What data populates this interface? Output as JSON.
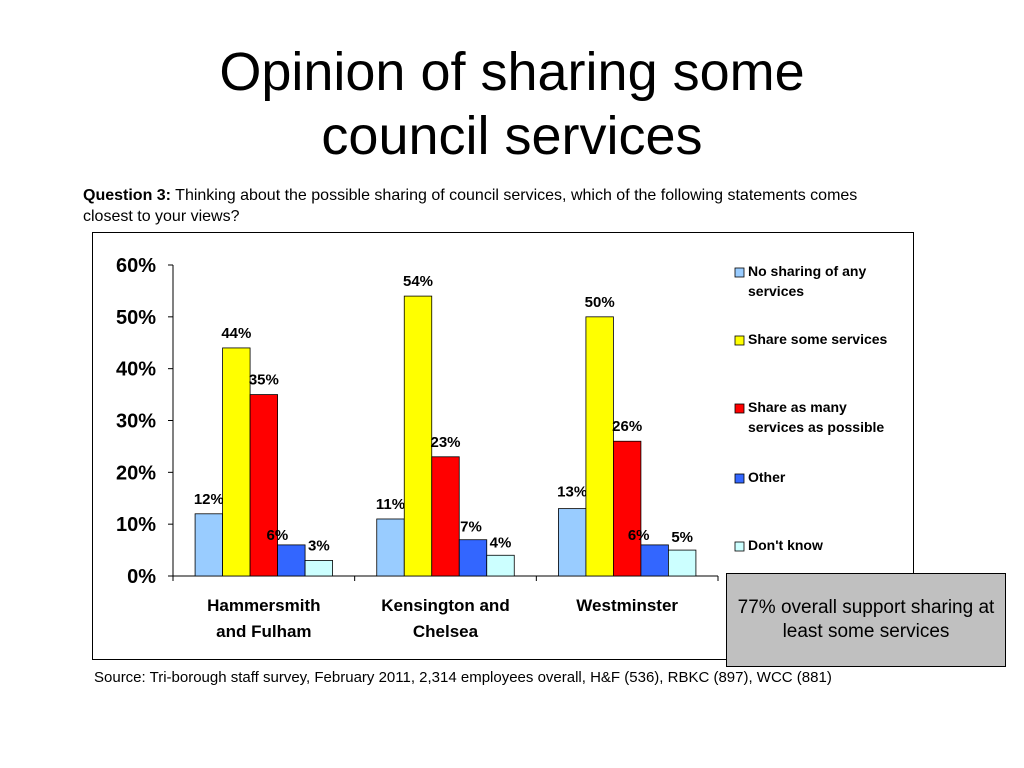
{
  "title_line1": "Opinion of sharing some",
  "title_line2": "council services",
  "question": {
    "label": "Question 3:",
    "text": "Thinking about the possible sharing of council services, which of the following statements comes closest to your views?"
  },
  "callout": "77% overall support sharing at least some services",
  "source": "Source: Tri-borough staff survey, February 2011, 2,314 employees overall, H&F (536), RBKC (897), WCC (881)",
  "chart_data": {
    "type": "bar",
    "categories": [
      [
        "Hammersmith",
        "and Fulham"
      ],
      [
        "Kensington and",
        "Chelsea"
      ],
      [
        "Westminster"
      ]
    ],
    "series": [
      {
        "name": "No sharing of any services",
        "legend_lines": [
          "No sharing of any",
          "services"
        ],
        "color": "#99ccff",
        "values": [
          12,
          11,
          13
        ],
        "labels": [
          "12%",
          "11%",
          "13%"
        ]
      },
      {
        "name": "Share some services",
        "legend_lines": [
          "Share some services"
        ],
        "color": "#ffff00",
        "values": [
          44,
          54,
          50
        ],
        "labels": [
          "44%",
          "54%",
          "50%"
        ]
      },
      {
        "name": "Share as many services as possible",
        "legend_lines": [
          "Share as many",
          "services as possible"
        ],
        "color": "#ff0000",
        "values": [
          35,
          23,
          26
        ],
        "labels": [
          "35%",
          "23%",
          "26%"
        ]
      },
      {
        "name": "Other",
        "legend_lines": [
          "Other"
        ],
        "color": "#3366ff",
        "values": [
          6,
          7,
          6
        ],
        "labels": [
          "6%",
          "7%",
          "6%"
        ]
      },
      {
        "name": "Don't know",
        "legend_lines": [
          "Don't know"
        ],
        "color": "#ccffff",
        "values": [
          3,
          4,
          5
        ],
        "labels": [
          "3%",
          "4%",
          "5%"
        ]
      }
    ],
    "ylim": [
      0,
      60
    ],
    "yticks": [
      0,
      10,
      20,
      30,
      40,
      50,
      60
    ],
    "ytick_labels": [
      "0%",
      "10%",
      "20%",
      "30%",
      "40%",
      "50%",
      "60%"
    ],
    "xlabel": "",
    "ylabel": "",
    "legend_position": "right",
    "grid": false
  }
}
